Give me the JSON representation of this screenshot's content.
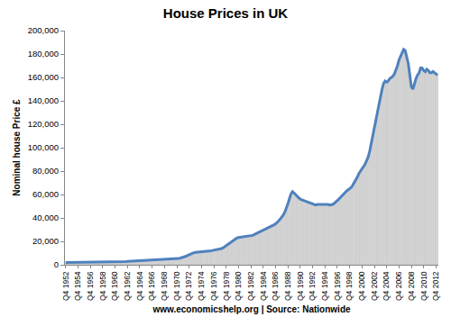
{
  "chart_data": {
    "type": "bar",
    "title": "House Prices in UK",
    "x_label": "www.economicshelp.org | Source: Nationwide",
    "y_label": "Nominal house Price £",
    "categories": [
      "Q4 1952",
      null,
      null,
      null,
      null,
      null,
      null,
      null,
      "Q4 1954",
      null,
      null,
      null,
      null,
      null,
      null,
      null,
      "Q4 1956",
      null,
      null,
      null,
      null,
      null,
      null,
      null,
      "Q4 1958",
      null,
      null,
      null,
      null,
      null,
      null,
      null,
      "Q4 1960",
      null,
      null,
      null,
      null,
      null,
      null,
      null,
      "Q4 1962",
      null,
      null,
      null,
      null,
      null,
      null,
      null,
      "Q4 1964",
      null,
      null,
      null,
      null,
      null,
      null,
      null,
      "Q4 1966",
      null,
      null,
      null,
      null,
      null,
      null,
      null,
      "Q4 1968",
      null,
      null,
      null,
      null,
      null,
      null,
      null,
      "Q4 1970",
      null,
      null,
      null,
      null,
      null,
      null,
      null,
      "Q4 1972",
      null,
      null,
      null,
      null,
      null,
      null,
      null,
      "Q4 1974",
      null,
      null,
      null,
      null,
      null,
      null,
      null,
      "Q4 1976",
      null,
      null,
      null,
      null,
      null,
      null,
      null,
      "Q4 1978",
      null,
      null,
      null,
      null,
      null,
      null,
      null,
      "Q4 1980",
      null,
      null,
      null,
      null,
      null,
      null,
      null,
      "Q4 1982",
      null,
      null,
      null,
      null,
      null,
      null,
      null,
      "Q4 1984",
      null,
      null,
      null,
      null,
      null,
      null,
      null,
      "Q4 1986",
      null,
      null,
      null,
      null,
      null,
      null,
      null,
      "Q4 1988",
      null,
      null,
      null,
      null,
      null,
      null,
      null,
      "Q4 1990",
      null,
      null,
      null,
      null,
      null,
      null,
      null,
      "Q4 1992",
      null,
      null,
      null,
      null,
      null,
      null,
      null,
      "Q4 1994",
      null,
      null,
      null,
      null,
      null,
      null,
      null,
      "Q4 1996",
      null,
      null,
      null,
      null,
      null,
      null,
      null,
      "Q4 1998",
      null,
      null,
      null,
      null,
      null,
      null,
      null,
      "Q4 2000",
      null,
      null,
      null,
      null,
      null,
      null,
      null,
      "Q4 2002",
      null,
      null,
      null,
      null,
      null,
      null,
      null,
      "Q4 2004",
      null,
      null,
      null,
      null,
      null,
      null,
      null,
      "Q4 2006",
      null,
      null,
      null,
      null,
      null,
      null,
      null,
      "Q4 2008",
      null,
      null,
      null,
      null,
      null,
      null,
      null,
      "Q4 2010",
      null,
      null,
      null,
      null,
      null,
      null,
      null,
      "Q4 2012",
      null
    ],
    "series": [
      {
        "type": "bar",
        "color": "#dedede",
        "values": [
          1890,
          1900,
          1910,
          1920,
          1920,
          1930,
          1940,
          1950,
          1960,
          1970,
          1980,
          1990,
          2000,
          2010,
          2020,
          2030,
          2040,
          2050,
          2060,
          2070,
          2080,
          2090,
          2100,
          2110,
          2120,
          2150,
          2180,
          2210,
          2240,
          2280,
          2320,
          2360,
          2400,
          2450,
          2500,
          2550,
          2600,
          2650,
          2700,
          2750,
          2800,
          2860,
          2920,
          2980,
          3040,
          3100,
          3170,
          3240,
          3300,
          3370,
          3440,
          3510,
          3580,
          3650,
          3720,
          3790,
          3860,
          3920,
          3990,
          4060,
          4120,
          4190,
          4260,
          4330,
          4400,
          4470,
          4540,
          4610,
          4680,
          4780,
          4880,
          4980,
          5100,
          5300,
          5550,
          5850,
          6200,
          6700,
          7300,
          8000,
          8700,
          9300,
          9800,
          10200,
          10500,
          10600,
          10700,
          10800,
          10900,
          11000,
          11200,
          11400,
          11600,
          11800,
          12000,
          12200,
          12400,
          12600,
          12800,
          13000,
          13300,
          13800,
          14500,
          15400,
          16300,
          17200,
          18300,
          19500,
          20600,
          21500,
          22300,
          22900,
          23300,
          23500,
          23800,
          24000,
          24000,
          24000,
          24100,
          24300,
          24600,
          25100,
          25700,
          26300,
          26900,
          27500,
          28100,
          28700,
          29300,
          29900,
          30500,
          31100,
          31700,
          32300,
          33200,
          34100,
          35000,
          36000,
          37500,
          39000,
          40500,
          42500,
          45000,
          48000,
          52000,
          56500,
          60500,
          62500,
          61500,
          60000,
          58500,
          57000,
          56000,
          55500,
          55000,
          54500,
          54000,
          53000,
          52500,
          52000,
          51500,
          51000,
          51000,
          51500,
          51500,
          51500,
          52000,
          52000,
          52000,
          51500,
          51500,
          51000,
          51000,
          51500,
          52500,
          53500,
          55000,
          56000,
          57500,
          59000,
          60500,
          61500,
          63000,
          64000,
          65000,
          66000,
          68000,
          70000,
          72000,
          75000,
          78000,
          80000,
          81500,
          83000,
          86000,
          89000,
          92000,
          97000,
          104000,
          111000,
          118000,
          125000,
          132000,
          139000,
          145000,
          150000,
          155000,
          157000,
          156000,
          157000,
          159000,
          160000,
          161000,
          163000,
          166000,
          170000,
          175000,
          178000,
          182000,
          184000,
          183000,
          178000,
          172000,
          162000,
          152000,
          150000,
          155000,
          159000,
          162000,
          164000,
          168000,
          168000,
          166000,
          165000,
          167000,
          166000,
          164000,
          164000,
          165000,
          164000,
          163000,
          162000
        ]
      },
      {
        "type": "line",
        "color": "#4f81bd",
        "values": [
          1890,
          1900,
          1910,
          1920,
          1920,
          1930,
          1940,
          1950,
          1960,
          1970,
          1980,
          1990,
          2000,
          2010,
          2020,
          2030,
          2040,
          2050,
          2060,
          2070,
          2080,
          2090,
          2100,
          2110,
          2120,
          2150,
          2180,
          2210,
          2240,
          2280,
          2320,
          2360,
          2400,
          2450,
          2500,
          2550,
          2600,
          2650,
          2700,
          2750,
          2800,
          2860,
          2920,
          2980,
          3040,
          3100,
          3170,
          3240,
          3300,
          3370,
          3440,
          3510,
          3580,
          3650,
          3720,
          3790,
          3860,
          3920,
          3990,
          4060,
          4120,
          4190,
          4260,
          4330,
          4400,
          4470,
          4540,
          4610,
          4680,
          4780,
          4880,
          4980,
          5100,
          5300,
          5550,
          5850,
          6200,
          6700,
          7300,
          8000,
          8700,
          9300,
          9800,
          10200,
          10500,
          10600,
          10700,
          10800,
          10900,
          11000,
          11200,
          11400,
          11600,
          11800,
          12000,
          12200,
          12400,
          12600,
          12800,
          13000,
          13300,
          13800,
          14500,
          15400,
          16300,
          17200,
          18300,
          19500,
          20600,
          21500,
          22300,
          22900,
          23300,
          23500,
          23800,
          24000,
          24000,
          24000,
          24100,
          24300,
          24600,
          25100,
          25700,
          26300,
          26900,
          27500,
          28100,
          28700,
          29300,
          29900,
          30500,
          31100,
          31700,
          32300,
          33200,
          34100,
          35000,
          36000,
          37500,
          39000,
          40500,
          42500,
          45000,
          48000,
          52000,
          56500,
          60500,
          62500,
          61500,
          60000,
          58500,
          57000,
          56000,
          55500,
          55000,
          54500,
          54000,
          53000,
          52500,
          52000,
          51500,
          51000,
          51000,
          51500,
          51500,
          51500,
          52000,
          52000,
          52000,
          51500,
          51500,
          51000,
          51000,
          51500,
          52500,
          53500,
          55000,
          56000,
          57500,
          59000,
          60500,
          61500,
          63000,
          64000,
          65000,
          66000,
          68000,
          70000,
          72000,
          75000,
          78000,
          80000,
          81500,
          83000,
          86000,
          89000,
          92000,
          97000,
          104000,
          111000,
          118000,
          125000,
          132000,
          139000,
          145000,
          150000,
          155000,
          157000,
          156000,
          157000,
          159000,
          160000,
          161000,
          163000,
          166000,
          170000,
          175000,
          178000,
          182000,
          184000,
          183000,
          178000,
          172000,
          162000,
          152000,
          150000,
          155000,
          159000,
          162000,
          164000,
          168000,
          168000,
          166000,
          165000,
          167000,
          166000,
          164000,
          164000,
          165000,
          164000,
          163000,
          162000
        ]
      }
    ],
    "ylim": [
      0,
      200000
    ],
    "yticks": [
      0,
      {
        "value": 20000,
        "label": "20,000"
      },
      {
        "value": 40000,
        "label": "40,000"
      },
      {
        "value": 60000,
        "label": "60,000"
      },
      {
        "value": 80000,
        "label": "80,000"
      },
      {
        "value": 100000,
        "label": "100,000"
      },
      {
        "value": 120000,
        "label": "120,000"
      },
      {
        "value": 140000,
        "label": "140,000"
      },
      {
        "value": 160000,
        "label": "160,000"
      },
      {
        "value": 180000,
        "label": "180,000"
      },
      {
        "value": 200000,
        "label": "200,000"
      }
    ],
    "grid": false
  }
}
